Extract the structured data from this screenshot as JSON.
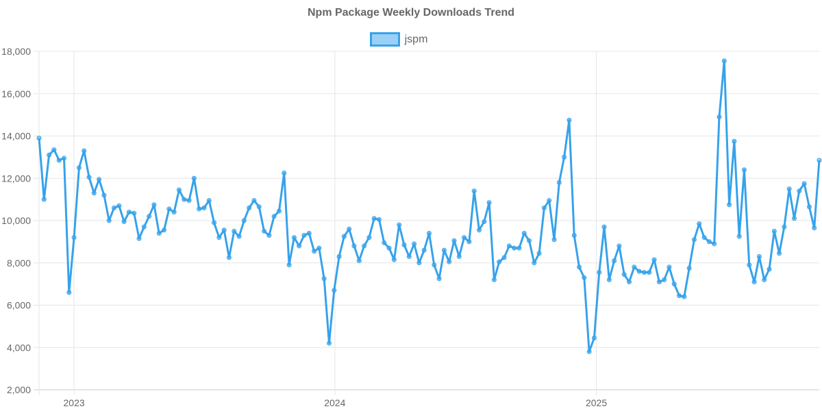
{
  "chart_data": {
    "type": "line",
    "title": "Npm Package Weekly Downloads Trend",
    "xlabel": "",
    "ylabel": "",
    "ylim": [
      2000,
      18000
    ],
    "yticks": [
      "2,000",
      "4,000",
      "6,000",
      "8,000",
      "10,000",
      "12,000",
      "14,000",
      "16,000",
      "18,000"
    ],
    "xticks": [
      "2023",
      "2024",
      "2025"
    ],
    "grid": true,
    "legend_position": "top",
    "colors": {
      "line": "#36a2eb",
      "fill": "#9ad0f5"
    },
    "x": [
      "2022-11-13",
      "2022-11-20",
      "2022-11-27",
      "2022-12-04",
      "2022-12-11",
      "2022-12-18",
      "2022-12-25",
      "2023-01-01",
      "2023-01-08",
      "2023-01-15",
      "2023-01-22",
      "2023-01-29",
      "2023-02-05",
      "2023-02-12",
      "2023-02-19",
      "2023-02-26",
      "2023-03-05",
      "2023-03-12",
      "2023-03-19",
      "2023-03-26",
      "2023-04-02",
      "2023-04-09",
      "2023-04-16",
      "2023-04-23",
      "2023-04-30",
      "2023-05-07",
      "2023-05-14",
      "2023-05-21",
      "2023-05-28",
      "2023-06-04",
      "2023-06-11",
      "2023-06-18",
      "2023-06-25",
      "2023-07-02",
      "2023-07-09",
      "2023-07-16",
      "2023-07-23",
      "2023-07-30",
      "2023-08-06",
      "2023-08-13",
      "2023-08-20",
      "2023-08-27",
      "2023-09-03",
      "2023-09-10",
      "2023-09-17",
      "2023-09-24",
      "2023-10-01",
      "2023-10-08",
      "2023-10-15",
      "2023-10-22",
      "2023-10-29",
      "2023-11-05",
      "2023-11-12",
      "2023-11-19",
      "2023-11-26",
      "2023-12-03",
      "2023-12-10",
      "2023-12-17",
      "2023-12-24",
      "2023-12-31",
      "2024-01-07",
      "2024-01-14",
      "2024-01-21",
      "2024-01-28",
      "2024-02-04",
      "2024-02-11",
      "2024-02-18",
      "2024-02-25",
      "2024-03-03",
      "2024-03-10",
      "2024-03-17",
      "2024-03-24",
      "2024-03-31",
      "2024-04-07",
      "2024-04-14",
      "2024-04-21",
      "2024-04-28",
      "2024-05-05",
      "2024-05-12",
      "2024-05-19",
      "2024-05-26",
      "2024-06-02",
      "2024-06-09",
      "2024-06-16",
      "2024-06-23",
      "2024-06-30",
      "2024-07-07",
      "2024-07-14",
      "2024-07-21",
      "2024-07-28",
      "2024-08-04",
      "2024-08-11",
      "2024-08-18",
      "2024-08-25",
      "2024-09-01",
      "2024-09-08",
      "2024-09-15",
      "2024-09-22",
      "2024-09-29",
      "2024-10-06",
      "2024-10-13",
      "2024-10-20",
      "2024-10-27",
      "2024-11-03",
      "2024-11-10",
      "2024-11-17",
      "2024-11-24",
      "2024-12-01",
      "2024-12-08",
      "2024-12-15",
      "2024-12-22",
      "2024-12-29",
      "2025-01-05",
      "2025-01-12",
      "2025-01-19",
      "2025-01-26",
      "2025-02-02",
      "2025-02-09",
      "2025-02-16",
      "2025-02-23",
      "2025-03-02",
      "2025-03-09",
      "2025-03-16",
      "2025-03-23",
      "2025-03-30",
      "2025-04-06",
      "2025-04-13",
      "2025-04-20",
      "2025-04-27",
      "2025-05-04",
      "2025-05-11",
      "2025-05-18",
      "2025-05-25",
      "2025-06-01",
      "2025-06-08",
      "2025-06-15",
      "2025-06-22",
      "2025-06-29",
      "2025-07-06",
      "2025-07-13",
      "2025-07-20",
      "2025-07-27",
      "2025-08-03",
      "2025-08-10",
      "2025-08-17",
      "2025-08-24",
      "2025-08-31",
      "2025-09-07",
      "2025-09-14",
      "2025-09-21",
      "2025-09-28",
      "2025-10-05",
      "2025-10-12",
      "2025-10-19",
      "2025-10-26",
      "2025-11-02",
      "2025-11-09"
    ],
    "series": [
      {
        "name": "jspm",
        "values": [
          13900,
          11000,
          13100,
          13350,
          12850,
          12950,
          6600,
          9200,
          12500,
          13300,
          12050,
          11300,
          11950,
          11200,
          10000,
          10600,
          10700,
          9950,
          10400,
          10350,
          9150,
          9700,
          10200,
          10750,
          9400,
          9550,
          10550,
          10400,
          11450,
          11000,
          10950,
          12000,
          10550,
          10600,
          10950,
          9900,
          9200,
          9550,
          8250,
          9500,
          9250,
          10000,
          10600,
          10950,
          10650,
          9500,
          9300,
          10200,
          10450,
          12250,
          7900,
          9200,
          8800,
          9300,
          9400,
          8550,
          8700,
          7250,
          4200,
          6700,
          8300,
          9250,
          9600,
          8800,
          8100,
          8800,
          9200,
          10100,
          10050,
          8950,
          8700,
          8150,
          9800,
          8850,
          8300,
          8900,
          8000,
          8600,
          9400,
          7900,
          7250,
          8600,
          8050,
          9050,
          8300,
          9200,
          9000,
          11400,
          9550,
          9950,
          10850,
          7200,
          8050,
          8250,
          8800,
          8700,
          8700,
          9400,
          9050,
          8000,
          8450,
          10600,
          10950,
          9100,
          11800,
          13000,
          14750,
          9300,
          7800,
          7300,
          3800,
          4450,
          7550,
          9700,
          7200,
          8100,
          8800,
          7450,
          7100,
          7800,
          7600,
          7550,
          7550,
          8150,
          7100,
          7200,
          7800,
          7000,
          6450,
          6400,
          7750,
          9100,
          9850,
          9200,
          9000,
          8900,
          14900,
          17550,
          10750,
          13750,
          9250,
          12400,
          7900,
          7100,
          8300,
          7200,
          7700,
          9500,
          8450,
          9700,
          11500,
          10100,
          11400,
          11750,
          10650,
          9650,
          12850
        ]
      }
    ]
  }
}
